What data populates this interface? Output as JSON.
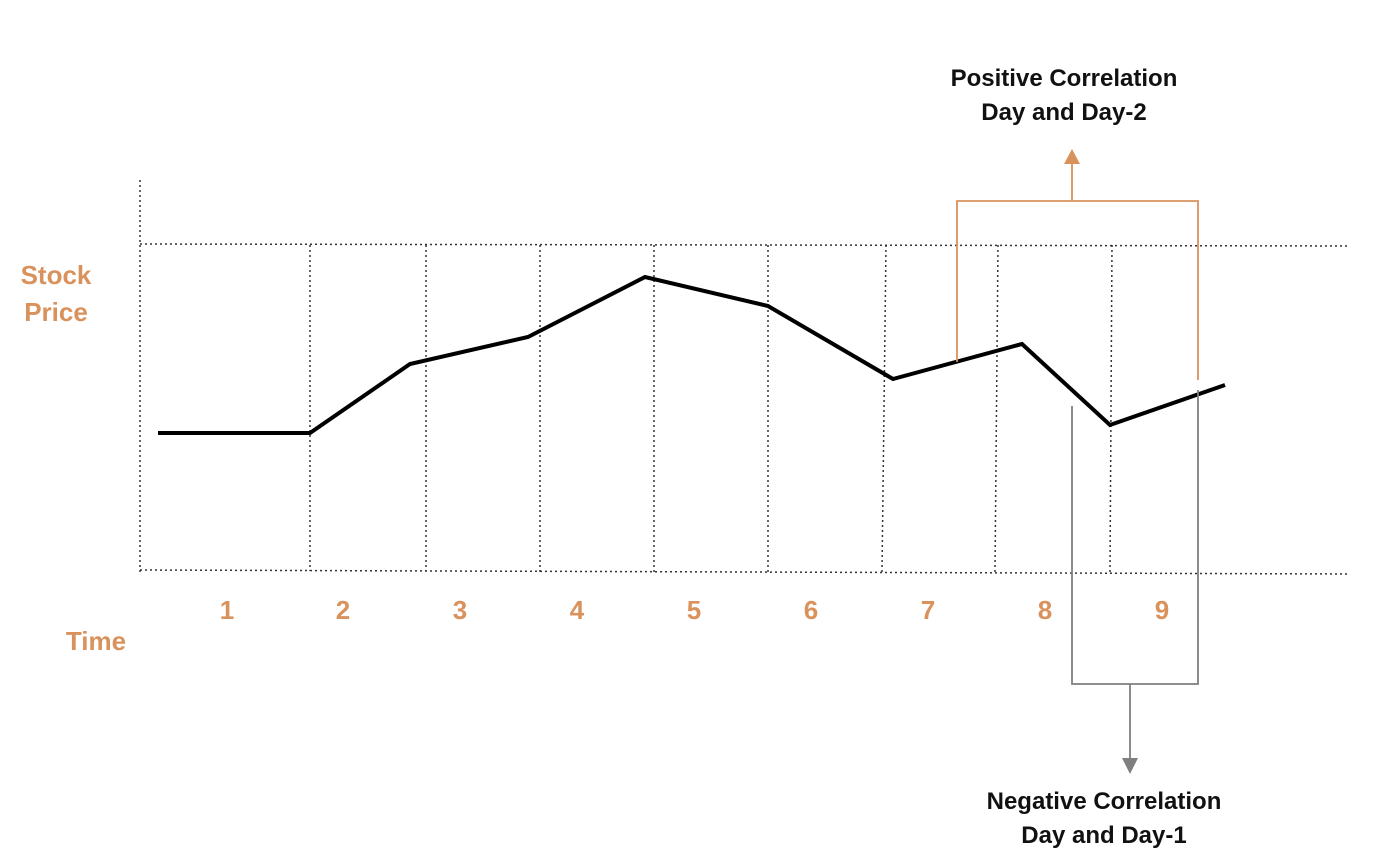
{
  "colors": {
    "accent": "#D9925B",
    "line": "#000000",
    "grid": "#333333",
    "bracket_positive": "#D9925B",
    "bracket_negative": "#7F7F7F",
    "text": "#111111"
  },
  "y_axis_label": {
    "line1": "Stock",
    "line2": "Price"
  },
  "x_axis_label": "Time",
  "days": [
    "1",
    "2",
    "3",
    "4",
    "5",
    "6",
    "7",
    "8",
    "9"
  ],
  "positive_annotation": {
    "line1": "Positive Correlation",
    "line2": "Day and Day-2"
  },
  "negative_annotation": {
    "line1": "Negative Correlation",
    "line2": "Day and Day-1"
  }
}
